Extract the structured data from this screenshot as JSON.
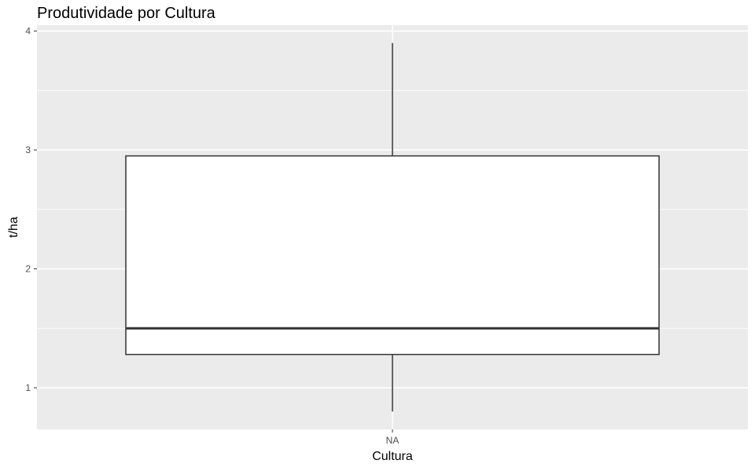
{
  "chart_data": {
    "type": "boxplot",
    "title": "Produtividade por Cultura",
    "xlabel": "Cultura",
    "ylabel": "t/ha",
    "categories": [
      "NA"
    ],
    "boxes": [
      {
        "category": "NA",
        "min": 0.8,
        "q1": 1.28,
        "median": 1.5,
        "q3": 2.95,
        "max": 3.9
      }
    ],
    "y_ticks": [
      1,
      2,
      3,
      4
    ],
    "ylim": [
      0.65,
      4.05
    ],
    "grid": true,
    "colors": {
      "panel_background": "#ebebeb",
      "gridline": "#ffffff",
      "box_fill": "#ffffff",
      "box_stroke": "#333333",
      "tick_label": "#4d4d4d"
    }
  }
}
